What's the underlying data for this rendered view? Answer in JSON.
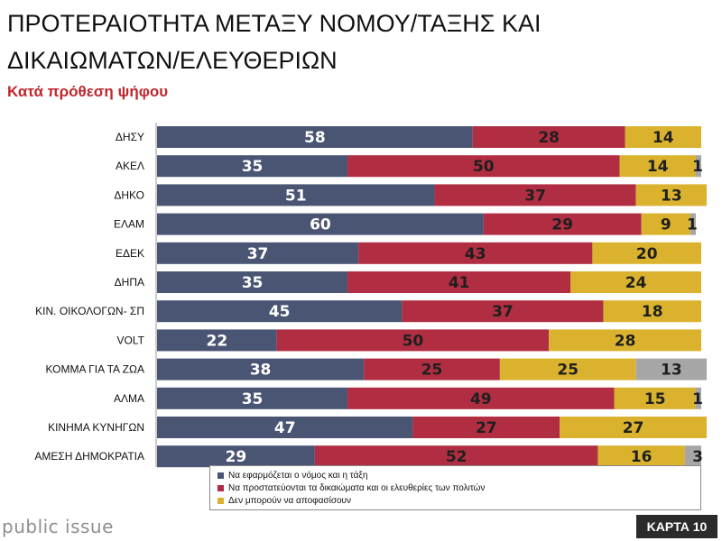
{
  "title": "ΠΡΟΤΕΡΑΙΟΤΗΤΑ ΜΕΤΑΞΥ ΝΟΜΟΥ/ΤΑΞΗΣ ΚΑΙ ΔΙΚΑΙΩΜΑΤΩΝ/ΕΛΕΥΘΕΡΙΩΝ",
  "subtitle": "Κατά πρόθεση ψήφου",
  "brand": "public issue",
  "badge": "ΚΑΡΤΑ 10",
  "chart_data": {
    "type": "bar",
    "orientation": "horizontal",
    "stacked": true,
    "xlim": [
      0,
      100
    ],
    "legend_position": "bottom",
    "categories": [
      "ΔΗΣΥ",
      "ΑΚΕΛ",
      "ΔΗΚΟ",
      "ΕΛΑΜ",
      "ΕΔΕΚ",
      "ΔΗΠΑ",
      "ΚΙΝ. ΟΙΚΟΛΟΓΩΝ- ΣΠ",
      "VOLT",
      "ΚΟΜΜΑ ΓΙΑ ΤΑ ΖΩΑ",
      "ΑΛΜΑ",
      "ΚΙΝΗΜΑ ΚΥΝΗΓΩΝ",
      "ΑΜΕΣΗ ΔΗΜΟΚΡΑΤΙΑ"
    ],
    "series": [
      {
        "name": "Να εφαρμόζεται ο νόμος και η τάξη",
        "color": "#4a5573",
        "label_color": "#ffffff",
        "values": [
          58,
          35,
          51,
          60,
          37,
          35,
          45,
          22,
          38,
          35,
          47,
          29
        ]
      },
      {
        "name": "Να προστατεύονται τα δικαιώματα και οι ελευθερίες των πολιτών",
        "color": "#b12d42",
        "label_color": "#1f1f1f",
        "values": [
          28,
          50,
          37,
          29,
          43,
          41,
          37,
          50,
          25,
          49,
          27,
          52
        ]
      },
      {
        "name": "Δεν μπορούν να αποφασίσουν",
        "color": "#dbb22e",
        "label_color": "#1f1f1f",
        "values": [
          14,
          14,
          13,
          9,
          20,
          24,
          18,
          28,
          25,
          15,
          27,
          16
        ]
      },
      {
        "name": "",
        "color": "#a6a6a6",
        "label_color": "#1f1f1f",
        "values": [
          0,
          1,
          0,
          1,
          0,
          0,
          0,
          0,
          13,
          1,
          0,
          3
        ]
      }
    ]
  }
}
